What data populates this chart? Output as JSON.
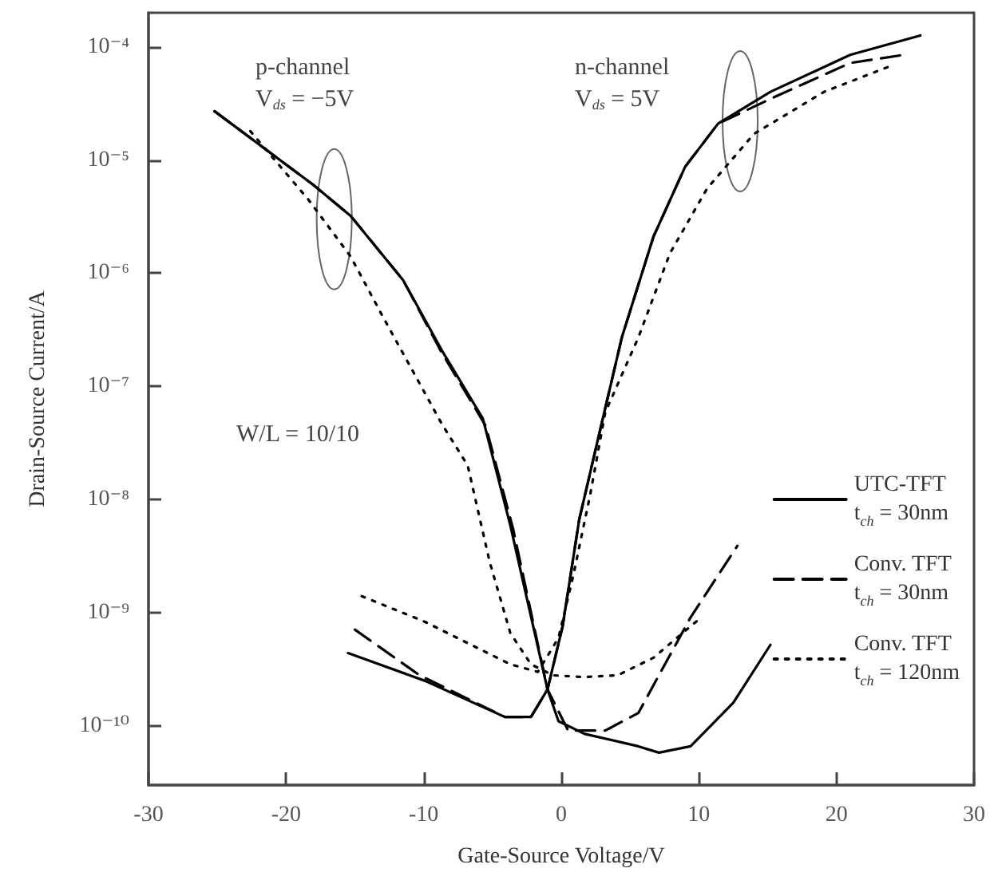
{
  "chart_data": {
    "type": "line",
    "xlabel": "Gate-Source Voltage/V",
    "ylabel": "Drain-Source Current/A",
    "annotations": [
      "p-channel",
      "V$_{ds}$ = −5V",
      "n-channel",
      "V$_{ds}$ = 5V",
      "W/L = 10/10"
    ],
    "log": "y",
    "grid": false,
    "legend": "right",
    "marker": "none",
    "xlim": [
      -30,
      30
    ],
    "xticks": [
      -30,
      -20,
      -10,
      0,
      10,
      20,
      30
    ],
    "ylim": [
      3e-11,
      0.0002
    ],
    "yticks": [
      {
        "value": 1e-10,
        "label": "10⁻¹⁰"
      },
      {
        "value": 1e-09,
        "label": "10⁻⁹"
      },
      {
        "value": 1e-08,
        "label": "10⁻⁸"
      },
      {
        "value": 1e-07,
        "label": "10⁻⁷"
      },
      {
        "value": 1e-06,
        "label": "10⁻⁶"
      },
      {
        "value": 1e-05,
        "label": "10⁻⁵"
      },
      {
        "value": 0.0001,
        "label": "10⁻⁴"
      }
    ],
    "series": [
      {
        "name": "UTC-TFT\nt$_{ch}$ = 30nm",
        "color": "#000000",
        "line_style": "solid",
        "x": [
          -25.2,
          -18,
          -15.3,
          -11.5,
          -8.7,
          -5.7,
          -3.7,
          -1,
          -0.2,
          1.7,
          5.6,
          7.1,
          9.4,
          12.5,
          15.2
        ],
        "values": [
          2.7e-05,
          6e-06,
          3.2e-06,
          8.7e-07,
          2.1e-07,
          5.2e-08,
          5.9e-09,
          2.1e-10,
          1.1e-10,
          8.5e-11,
          6.6e-11,
          5.8e-11,
          6.6e-11,
          1.6e-10,
          5.2e-10
        ]
      },
      {
        "color": "#000000",
        "line_style": "solid",
        "x": [
          -15.5,
          -9.9,
          -4.1,
          -2.2,
          -1,
          0.1,
          1.3,
          2.9,
          4.4,
          6.7,
          9,
          11.4,
          15.2,
          21,
          26.1
        ],
        "values": [
          4.4e-10,
          2.5e-10,
          1.2e-10,
          1.2e-10,
          2.1e-10,
          7.6e-10,
          6.6e-09,
          4.5e-08,
          2.7e-07,
          2.1e-06,
          8.7e-06,
          2.1e-05,
          4e-05,
          8.5e-05,
          0.000126
        ]
      },
      {
        "name": "Conv. TFT\nt$_{ch}$ = 30nm",
        "color": "#000000",
        "line_style": "dashed",
        "x": [
          -25.2,
          -18,
          -15.3,
          -11.5,
          -8.7,
          -5.5,
          -3.5,
          -1,
          0.5,
          3.2,
          5.6,
          9.4,
          12.8
        ],
        "values": [
          2.7e-05,
          6e-06,
          3.2e-06,
          8.7e-07,
          2e-07,
          4.5e-08,
          5.5e-09,
          2.1e-10,
          9.1e-11,
          9.1e-11,
          1.3e-10,
          9.1e-10,
          3.9e-09
        ]
      },
      {
        "color": "#000000",
        "line_style": "dashed",
        "x": [
          -15,
          -10.3,
          -4.1,
          -2.2,
          -1,
          0.1,
          1.3,
          2.9,
          4.4,
          6.7,
          9,
          11.4,
          15.7,
          21,
          24.9
        ],
        "values": [
          7.1e-10,
          2.8e-10,
          1.2e-10,
          1.2e-10,
          2.1e-10,
          7.6e-10,
          6.6e-09,
          4.5e-08,
          2.7e-07,
          2.1e-06,
          8.7e-06,
          2.1e-05,
          3.7e-05,
          7.2e-05,
          8.5e-05
        ]
      },
      {
        "name": "Conv. TFT\nt$_{ch}$ = 120nm",
        "color": "#000000",
        "line_style": "dotted",
        "x": [
          -22.6,
          -18.4,
          -15.3,
          -13,
          -8.7,
          -6.8,
          -5.2,
          -3.7,
          -2.2,
          -0.6,
          1.7,
          4.1,
          6.7,
          9.4,
          10.2
        ],
        "values": [
          1.8e-05,
          4.5e-06,
          1.4e-06,
          4.2e-07,
          4.7e-08,
          2e-08,
          2.8e-09,
          6.6e-10,
          3.5e-10,
          2.8e-10,
          2.7e-10,
          2.8e-10,
          4e-10,
          7.6e-10,
          9.1e-10
        ]
      },
      {
        "color": "#000000",
        "line_style": "dotted",
        "x": [
          -14.5,
          -9.9,
          -3.7,
          -1.7,
          -0.2,
          0.9,
          2.1,
          3.2,
          5.6,
          7.9,
          10.6,
          14,
          19.1,
          24.1
        ],
        "values": [
          1.4e-09,
          8.3e-10,
          3.5e-10,
          3e-10,
          6e-10,
          2.2e-09,
          1.1e-08,
          5.9e-08,
          2.7e-07,
          1.5e-06,
          5.6e-06,
          1.7e-05,
          4e-05,
          6.9e-05
        ]
      }
    ]
  }
}
